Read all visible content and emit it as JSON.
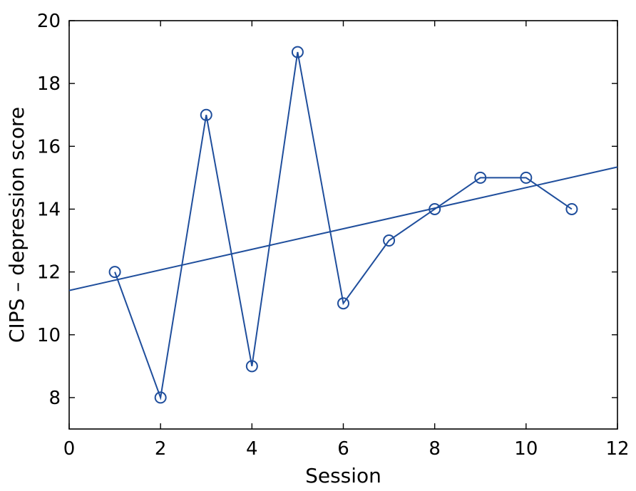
{
  "chart_data": {
    "type": "line",
    "title": "",
    "xlabel": "Session",
    "ylabel": "CIPS – depression score",
    "xlim": [
      0,
      12
    ],
    "ylim": [
      7,
      20
    ],
    "xticks": [
      "0",
      "2",
      "4",
      "6",
      "8",
      "10",
      "12"
    ],
    "yticks": [
      "8",
      "10",
      "12",
      "14",
      "16",
      "18",
      "20"
    ],
    "grid": false,
    "legend": "none",
    "series": [
      {
        "type": "line-with-circle-markers",
        "color": "#1f4e9c",
        "x": [
          1,
          2,
          3,
          4,
          5,
          6,
          7,
          8,
          9,
          10,
          11
        ],
        "y": [
          12,
          8,
          17,
          9,
          19,
          11,
          13,
          14,
          15,
          15,
          14
        ]
      },
      {
        "type": "trend-line",
        "color": "#1f4e9c",
        "x": [
          0,
          12
        ],
        "y": [
          11.41,
          15.34
        ]
      }
    ]
  }
}
